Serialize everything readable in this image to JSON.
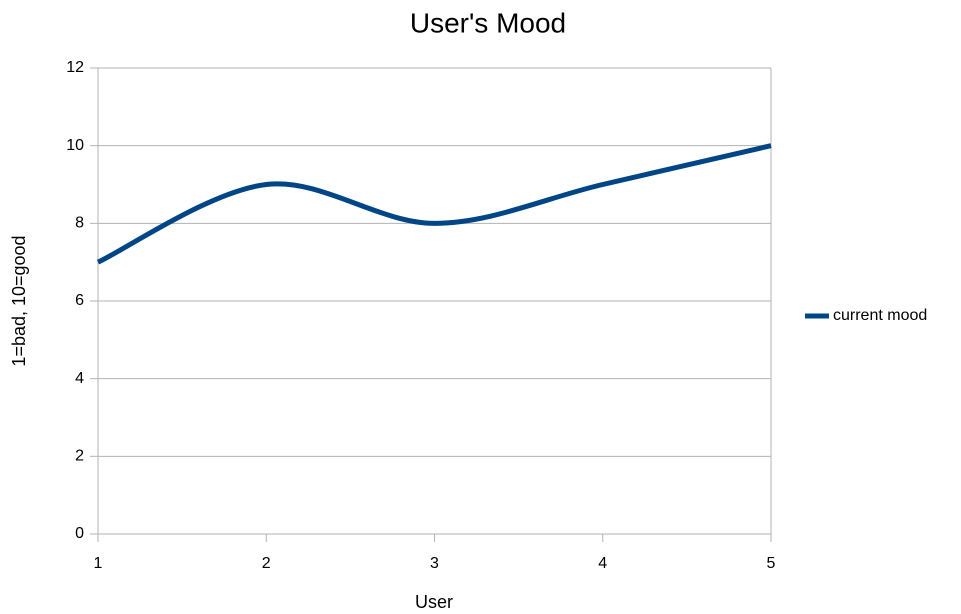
{
  "chart_data": {
    "type": "line",
    "title": "User's Mood",
    "x_label": "User",
    "y_label": "1=bad, 10=good",
    "x": [
      1,
      2,
      3,
      4,
      5
    ],
    "series": [
      {
        "name": "current mood",
        "color": "#004586",
        "values": [
          7,
          9,
          8,
          9,
          10
        ]
      }
    ],
    "xlim": [
      1,
      5
    ],
    "xticks": [
      1,
      2,
      3,
      4,
      5
    ],
    "ylim": [
      0,
      12
    ],
    "yticks": [
      0,
      2,
      4,
      6,
      8,
      10,
      12
    ],
    "grid": true,
    "legend": "right",
    "smooth": true
  }
}
